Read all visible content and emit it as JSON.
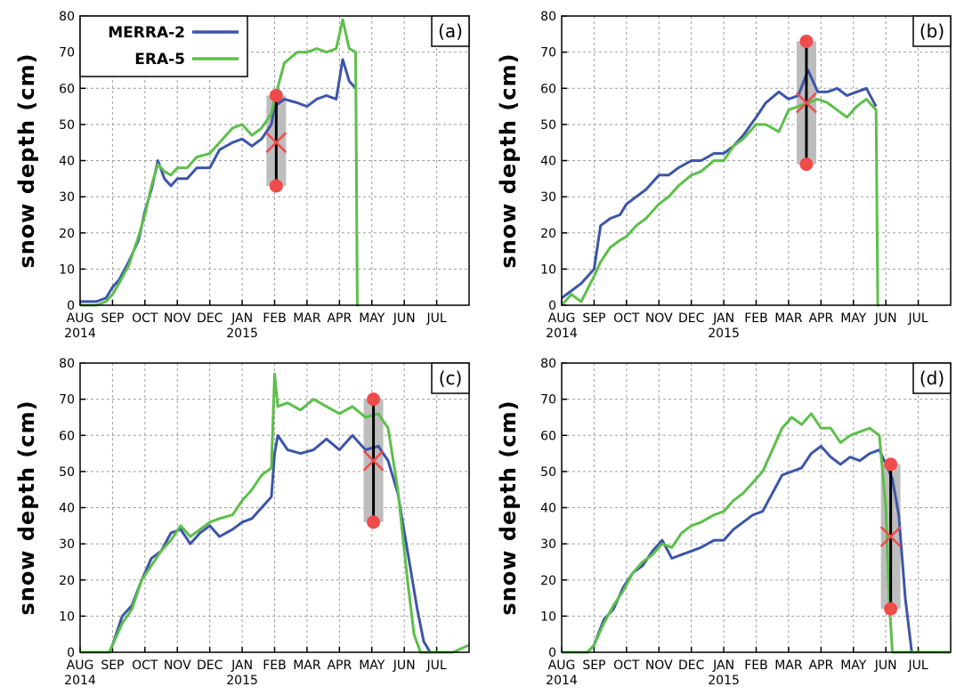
{
  "figure": {
    "colors": {
      "merra2": "#3d55a8",
      "era5": "#5cbf4a",
      "marker": "#f04b4b",
      "bar": "#000000",
      "shade": "#bdbdbd",
      "grid": "#9e9e9e"
    }
  },
  "chart_data": [
    {
      "type": "line",
      "panel": "(a)",
      "ylabel": "snow depth (cm)",
      "ylim": [
        0,
        80
      ],
      "yticks": [
        0,
        10,
        20,
        30,
        40,
        50,
        60,
        70,
        80
      ],
      "x_unit": "months since 2014-08-01",
      "xlim": [
        0,
        12
      ],
      "xtick_labels": [
        "AUG",
        "SEP",
        "OCT",
        "NOV",
        "DEC",
        "JAN",
        "FEB",
        "MAR",
        "APR",
        "MAY",
        "JUN",
        "JUL"
      ],
      "year_labels": [
        {
          "at": 0,
          "text": "2014"
        },
        {
          "at": 5,
          "text": "2015"
        }
      ],
      "grid": true,
      "legend": {
        "position": "top-left",
        "entries": [
          "MERRA-2",
          "ERA-5"
        ]
      },
      "series": [
        {
          "name": "MERRA-2",
          "color": "merra2",
          "x": [
            0,
            0.3,
            0.5,
            0.8,
            1,
            1.2,
            1.5,
            1.8,
            2,
            2.2,
            2.4,
            2.6,
            2.8,
            3,
            3.3,
            3.6,
            4,
            4.3,
            4.7,
            5,
            5.3,
            5.6,
            5.9,
            6,
            6.3,
            6.7,
            7,
            7.3,
            7.6,
            7.9,
            8.1,
            8.3,
            8.5
          ],
          "y": [
            1,
            1,
            1,
            2,
            5,
            7,
            12,
            18,
            26,
            32,
            40,
            35,
            33,
            35,
            35,
            38,
            38,
            43,
            45,
            46,
            44,
            46,
            50,
            55,
            57,
            56,
            55,
            57,
            58,
            57,
            68,
            62,
            60
          ]
        },
        {
          "name": "ERA-5",
          "color": "era5",
          "x": [
            0,
            0.3,
            0.5,
            0.8,
            1,
            1.2,
            1.5,
            1.8,
            2,
            2.2,
            2.4,
            2.6,
            2.8,
            3,
            3.3,
            3.6,
            4,
            4.3,
            4.7,
            5,
            5.3,
            5.6,
            5.9,
            6,
            6.3,
            6.7,
            7,
            7.3,
            7.6,
            7.9,
            8.1,
            8.3,
            8.5,
            8.55,
            8.6
          ],
          "y": [
            0,
            0,
            0,
            1,
            3,
            6,
            11,
            19,
            25,
            33,
            39,
            37,
            36,
            38,
            38,
            41,
            42,
            45,
            49,
            50,
            47,
            49,
            53,
            57,
            67,
            70,
            70,
            71,
            70,
            71,
            79,
            71,
            70,
            0,
            0
          ]
        }
      ],
      "errorbar": {
        "x": 6.05,
        "center": 45,
        "low": 33,
        "high": 58
      }
    },
    {
      "type": "line",
      "panel": "(b)",
      "ylabel": "snow depth (cm)",
      "ylim": [
        0,
        80
      ],
      "yticks": [
        0,
        10,
        20,
        30,
        40,
        50,
        60,
        70,
        80
      ],
      "x_unit": "months since 2014-08-01",
      "xlim": [
        0,
        12
      ],
      "xtick_labels": [
        "AUG",
        "SEP",
        "OCT",
        "NOV",
        "DEC",
        "JAN",
        "FEB",
        "MAR",
        "APR",
        "MAY",
        "JUN",
        "JUL"
      ],
      "year_labels": [
        {
          "at": 0,
          "text": "2014"
        },
        {
          "at": 5,
          "text": "2015"
        }
      ],
      "grid": true,
      "series": [
        {
          "name": "MERRA-2",
          "color": "merra2",
          "x": [
            0,
            0.3,
            0.6,
            1,
            1.2,
            1.5,
            1.8,
            2,
            2.3,
            2.6,
            3,
            3.3,
            3.6,
            4,
            4.3,
            4.7,
            5,
            5.3,
            5.6,
            6,
            6.3,
            6.7,
            7,
            7.3,
            7.6,
            7.9,
            8.2,
            8.5,
            8.8,
            9.1,
            9.4,
            9.7
          ],
          "y": [
            2,
            4,
            6,
            10,
            22,
            24,
            25,
            28,
            30,
            32,
            36,
            36,
            38,
            40,
            40,
            42,
            42,
            44,
            47,
            52,
            56,
            59,
            57,
            58,
            65,
            59,
            59,
            60,
            58,
            59,
            60,
            55
          ]
        },
        {
          "name": "ERA-5",
          "color": "era5",
          "x": [
            0,
            0.3,
            0.6,
            1,
            1.2,
            1.5,
            1.8,
            2,
            2.3,
            2.6,
            3,
            3.3,
            3.6,
            4,
            4.3,
            4.7,
            5,
            5.3,
            5.6,
            6,
            6.3,
            6.7,
            7,
            7.3,
            7.6,
            7.9,
            8.2,
            8.5,
            8.8,
            9.1,
            9.4,
            9.7,
            9.75,
            9.8
          ],
          "y": [
            0,
            3,
            1,
            8,
            12,
            16,
            18,
            19,
            22,
            24,
            28,
            30,
            33,
            36,
            37,
            40,
            40,
            44,
            46,
            50,
            50,
            48,
            54,
            55,
            56,
            57,
            56,
            54,
            52,
            55,
            57,
            54,
            0,
            0
          ]
        }
      ],
      "errorbar": {
        "x": 7.55,
        "center": 56,
        "low": 39,
        "high": 73
      }
    },
    {
      "type": "line",
      "panel": "(c)",
      "ylabel": "snow depth (cm)",
      "ylim": [
        0,
        80
      ],
      "yticks": [
        0,
        10,
        20,
        30,
        40,
        50,
        60,
        70,
        80
      ],
      "x_unit": "months since 2014-08-01",
      "xlim": [
        0,
        12
      ],
      "xtick_labels": [
        "AUG",
        "SEP",
        "OCT",
        "NOV",
        "DEC",
        "JAN",
        "FEB",
        "MAR",
        "APR",
        "MAY",
        "JUN",
        "JUL"
      ],
      "year_labels": [
        {
          "at": 0,
          "text": "2014"
        },
        {
          "at": 5,
          "text": "2015"
        }
      ],
      "grid": true,
      "series": [
        {
          "name": "MERRA-2",
          "color": "merra2",
          "x": [
            0,
            0.5,
            0.9,
            1,
            1.3,
            1.6,
            1.9,
            2.2,
            2.5,
            2.8,
            3.1,
            3.4,
            3.7,
            4,
            4.3,
            4.7,
            5,
            5.3,
            5.6,
            5.9,
            6,
            6.1,
            6.4,
            6.8,
            7.2,
            7.6,
            8,
            8.4,
            8.8,
            9.2,
            9.5,
            9.8,
            10.1,
            10.4,
            10.6,
            10.8,
            10.9
          ],
          "y": [
            0,
            0,
            0,
            2,
            10,
            13,
            20,
            26,
            28,
            33,
            34,
            30,
            33,
            35,
            32,
            34,
            36,
            37,
            40,
            43,
            55,
            60,
            56,
            55,
            56,
            59,
            56,
            60,
            56,
            57,
            53,
            44,
            28,
            12,
            3,
            0,
            0
          ]
        },
        {
          "name": "ERA-5",
          "color": "era5",
          "x": [
            0,
            0.5,
            0.9,
            1,
            1.3,
            1.6,
            1.9,
            2.2,
            2.5,
            2.8,
            3.1,
            3.4,
            3.7,
            4,
            4.3,
            4.7,
            5,
            5.3,
            5.6,
            5.9,
            6,
            6.1,
            6.4,
            6.8,
            7.2,
            7.6,
            8,
            8.4,
            8.8,
            9.2,
            9.5,
            9.8,
            10.1,
            10.3,
            10.5,
            11.5,
            12
          ],
          "y": [
            0,
            0,
            0,
            2,
            8,
            12,
            20,
            24,
            28,
            31,
            35,
            32,
            34,
            36,
            37,
            38,
            42,
            45,
            49,
            51,
            77,
            68,
            69,
            67,
            70,
            68,
            66,
            68,
            65,
            66,
            62,
            45,
            20,
            5,
            0,
            0,
            2
          ]
        }
      ],
      "errorbar": {
        "x": 9.05,
        "center": 53,
        "low": 36,
        "high": 70
      }
    },
    {
      "type": "line",
      "panel": "(d)",
      "ylabel": "snow depth (cm)",
      "ylim": [
        0,
        80
      ],
      "yticks": [
        0,
        10,
        20,
        30,
        40,
        50,
        60,
        70,
        80
      ],
      "x_unit": "months since 2014-08-01",
      "xlim": [
        0,
        12
      ],
      "xtick_labels": [
        "AUG",
        "SEP",
        "OCT",
        "NOV",
        "DEC",
        "JAN",
        "FEB",
        "MAR",
        "APR",
        "MAY",
        "JUN",
        "JUL"
      ],
      "year_labels": [
        {
          "at": 0,
          "text": "2014"
        },
        {
          "at": 5,
          "text": "2015"
        }
      ],
      "grid": true,
      "series": [
        {
          "name": "MERRA-2",
          "color": "merra2",
          "x": [
            0,
            0.8,
            1,
            1.3,
            1.6,
            1.9,
            2.2,
            2.5,
            2.8,
            3.1,
            3.4,
            3.7,
            4,
            4.3,
            4.7,
            5,
            5.3,
            5.6,
            5.9,
            6.2,
            6.5,
            6.8,
            7.1,
            7.4,
            7.7,
            8,
            8.3,
            8.6,
            8.9,
            9.2,
            9.5,
            9.8,
            10,
            10.2,
            10.4,
            10.6,
            10.8
          ],
          "y": [
            0,
            0,
            2,
            9,
            12,
            18,
            22,
            24,
            28,
            31,
            26,
            27,
            28,
            29,
            31,
            31,
            34,
            36,
            38,
            39,
            44,
            49,
            50,
            51,
            55,
            57,
            54,
            52,
            54,
            53,
            55,
            56,
            52,
            48,
            38,
            15,
            0
          ]
        },
        {
          "name": "ERA-5",
          "color": "era5",
          "x": [
            0,
            0.8,
            1,
            1.3,
            1.6,
            1.9,
            2.2,
            2.5,
            2.8,
            3.1,
            3.4,
            3.7,
            4,
            4.3,
            4.7,
            5,
            5.3,
            5.6,
            5.9,
            6.2,
            6.5,
            6.8,
            7.1,
            7.4,
            7.7,
            8,
            8.3,
            8.6,
            8.9,
            9.2,
            9.5,
            9.8,
            10,
            10.1,
            10.2,
            10.3,
            10.4,
            12
          ],
          "y": [
            0,
            0,
            2,
            8,
            13,
            17,
            22,
            25,
            27,
            30,
            29,
            33,
            35,
            36,
            38,
            39,
            42,
            44,
            47,
            50,
            56,
            62,
            65,
            63,
            66,
            62,
            62,
            58,
            60,
            61,
            62,
            60,
            40,
            15,
            0,
            0,
            0,
            0
          ]
        }
      ],
      "errorbar": {
        "x": 10.15,
        "center": 32,
        "low": 12,
        "high": 52
      }
    }
  ]
}
